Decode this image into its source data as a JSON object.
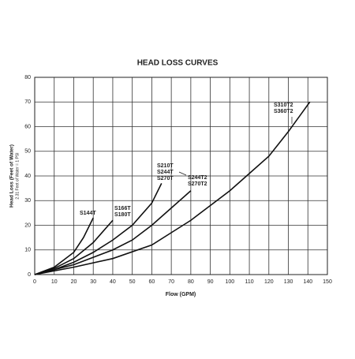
{
  "chart_data": {
    "type": "line",
    "title": "HEAD LOSS CURVES",
    "x_label": "Flow (GPM)",
    "y_label": [
      "Head Loss (Feet of Water)",
      "2.31 Feet of Water = 1 PSI"
    ],
    "xlim": [
      0,
      150
    ],
    "xticks": [
      0,
      10,
      20,
      30,
      40,
      50,
      60,
      70,
      80,
      90,
      100,
      110,
      120,
      130,
      140,
      150
    ],
    "ylim": [
      0,
      80
    ],
    "yticks": [
      0,
      10,
      20,
      30,
      40,
      50,
      60,
      70,
      80
    ],
    "grid": true,
    "series": [
      {
        "labels": [
          "S144T"
        ],
        "color": "#111111",
        "x": [
          0,
          10,
          20,
          25,
          30
        ],
        "values": [
          0,
          3,
          9,
          15,
          23
        ]
      },
      {
        "labels": [
          "S166T",
          "S180T"
        ],
        "color": "#111111",
        "x": [
          0,
          10,
          20,
          30,
          40
        ],
        "values": [
          0,
          2.5,
          6.5,
          13,
          22
        ]
      },
      {
        "labels": [
          "S210T",
          "S244T",
          "S270T"
        ],
        "color": "#111111",
        "x": [
          0,
          10,
          20,
          30,
          40,
          50,
          60,
          65
        ],
        "values": [
          0,
          2,
          5,
          9,
          14,
          20,
          29,
          37
        ]
      },
      {
        "labels": [
          "S244T2",
          "S270T2"
        ],
        "color": "#111111",
        "x": [
          0,
          20,
          30,
          40,
          50,
          60,
          70,
          80
        ],
        "values": [
          0,
          4,
          7,
          10,
          14,
          20,
          27,
          34
        ]
      },
      {
        "labels": [
          "S310T2",
          "S360T2"
        ],
        "color": "#111111",
        "x": [
          0,
          20,
          40,
          60,
          70,
          80,
          90,
          100,
          110,
          120,
          125,
          130,
          141
        ],
        "values": [
          0,
          3,
          6.5,
          12,
          17,
          22,
          28,
          34,
          41,
          48,
          53,
          58,
          70
        ]
      }
    ]
  }
}
